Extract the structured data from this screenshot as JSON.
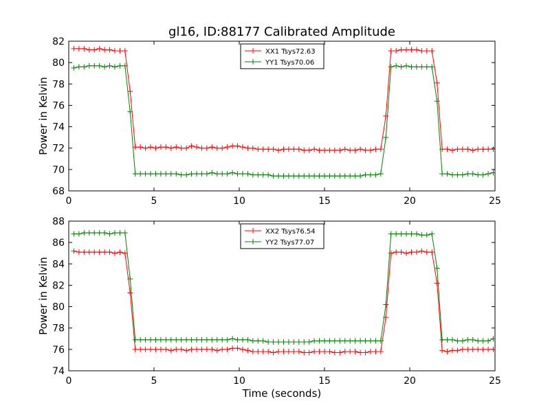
{
  "title": "gl16, ID:88177 Calibrated Amplitude",
  "colors": {
    "xx": "#ff0000",
    "yy": "#008000"
  },
  "chart_data": [
    {
      "type": "line",
      "ylabel": "Power in Kelvin",
      "xlabel": "",
      "xlim": [
        0,
        25
      ],
      "ylim": [
        68,
        82
      ],
      "xticks": [
        "0",
        "5",
        "10",
        "15",
        "20",
        "25"
      ],
      "yticks": [
        "68",
        "70",
        "72",
        "74",
        "76",
        "78",
        "80",
        "82"
      ],
      "legend_position": "top-center",
      "grid": false,
      "series": [
        {
          "name": "XX1 Tsys72.63",
          "color": "#ff0000",
          "x": [
            0.3,
            0.6,
            0.9,
            1.2,
            1.5,
            1.8,
            2.1,
            2.4,
            2.7,
            3.0,
            3.3,
            3.6,
            3.9,
            4.2,
            4.5,
            4.8,
            5.1,
            5.4,
            5.7,
            6.0,
            6.3,
            6.6,
            6.9,
            7.2,
            7.5,
            7.8,
            8.1,
            8.4,
            8.7,
            9.0,
            9.3,
            9.6,
            9.9,
            10.2,
            10.5,
            10.8,
            11.1,
            11.4,
            11.7,
            12.0,
            12.3,
            12.6,
            12.9,
            13.2,
            13.5,
            13.8,
            14.1,
            14.4,
            14.7,
            15.0,
            15.3,
            15.6,
            15.9,
            16.2,
            16.5,
            16.8,
            17.1,
            17.4,
            17.7,
            18.0,
            18.3,
            18.6,
            18.9,
            19.2,
            19.5,
            19.8,
            20.1,
            20.4,
            20.7,
            21.0,
            21.3,
            21.6,
            21.9,
            22.2,
            22.5,
            22.8,
            23.1,
            23.4,
            23.7,
            24.0,
            24.3,
            24.6,
            24.9
          ],
          "values": [
            81.3,
            81.3,
            81.3,
            81.2,
            81.2,
            81.3,
            81.2,
            81.2,
            81.1,
            81.1,
            81.1,
            77.3,
            72.1,
            72.1,
            72.0,
            72.1,
            72.0,
            72.1,
            72.1,
            72.0,
            72.1,
            72.0,
            72.0,
            72.2,
            72.1,
            72.0,
            72.0,
            72.1,
            72.0,
            72.0,
            72.1,
            72.2,
            72.2,
            72.1,
            72.0,
            72.0,
            71.9,
            71.9,
            71.9,
            71.9,
            71.8,
            71.9,
            71.9,
            71.9,
            71.9,
            71.8,
            71.8,
            71.9,
            71.8,
            71.8,
            71.8,
            71.8,
            71.8,
            71.9,
            71.8,
            71.8,
            71.9,
            71.8,
            71.8,
            71.9,
            71.9,
            75.0,
            81.1,
            81.1,
            81.2,
            81.2,
            81.2,
            81.2,
            81.1,
            81.1,
            81.1,
            78.1,
            71.9,
            71.9,
            71.8,
            71.9,
            71.9,
            71.9,
            71.8,
            71.9,
            71.9,
            71.9,
            71.9
          ]
        },
        {
          "name": "YY1 Tsys70.06",
          "color": "#008000",
          "x": [
            0.3,
            0.6,
            0.9,
            1.2,
            1.5,
            1.8,
            2.1,
            2.4,
            2.7,
            3.0,
            3.3,
            3.6,
            3.9,
            4.2,
            4.5,
            4.8,
            5.1,
            5.4,
            5.7,
            6.0,
            6.3,
            6.6,
            6.9,
            7.2,
            7.5,
            7.8,
            8.1,
            8.4,
            8.7,
            9.0,
            9.3,
            9.6,
            9.9,
            10.2,
            10.5,
            10.8,
            11.1,
            11.4,
            11.7,
            12.0,
            12.3,
            12.6,
            12.9,
            13.2,
            13.5,
            13.8,
            14.1,
            14.4,
            14.7,
            15.0,
            15.3,
            15.6,
            15.9,
            16.2,
            16.5,
            16.8,
            17.1,
            17.4,
            17.7,
            18.0,
            18.3,
            18.6,
            18.9,
            19.2,
            19.5,
            19.8,
            20.1,
            20.4,
            20.7,
            21.0,
            21.3,
            21.6,
            21.9,
            22.2,
            22.5,
            22.8,
            23.1,
            23.4,
            23.7,
            24.0,
            24.3,
            24.6,
            24.9
          ],
          "values": [
            79.5,
            79.6,
            79.6,
            79.7,
            79.7,
            79.7,
            79.6,
            79.7,
            79.6,
            79.7,
            79.7,
            75.4,
            69.6,
            69.6,
            69.6,
            69.6,
            69.6,
            69.6,
            69.6,
            69.6,
            69.6,
            69.5,
            69.5,
            69.6,
            69.6,
            69.6,
            69.6,
            69.7,
            69.6,
            69.6,
            69.6,
            69.7,
            69.6,
            69.6,
            69.6,
            69.5,
            69.5,
            69.5,
            69.5,
            69.4,
            69.4,
            69.4,
            69.4,
            69.4,
            69.4,
            69.4,
            69.4,
            69.4,
            69.4,
            69.4,
            69.4,
            69.4,
            69.4,
            69.4,
            69.4,
            69.4,
            69.4,
            69.5,
            69.5,
            69.5,
            69.6,
            73.0,
            79.6,
            79.7,
            79.6,
            79.7,
            79.6,
            79.6,
            79.6,
            79.6,
            79.6,
            76.4,
            69.6,
            69.6,
            69.5,
            69.5,
            69.5,
            69.6,
            69.6,
            69.5,
            69.5,
            69.6,
            69.7
          ]
        }
      ]
    },
    {
      "type": "line",
      "ylabel": "Power in Kelvin",
      "xlabel": "Time (seconds)",
      "xlim": [
        0,
        25
      ],
      "ylim": [
        74,
        88
      ],
      "xticks": [
        "0",
        "5",
        "10",
        "15",
        "20",
        "25"
      ],
      "yticks": [
        "74",
        "76",
        "78",
        "80",
        "82",
        "84",
        "86",
        "88"
      ],
      "legend_position": "top-center",
      "grid": false,
      "series": [
        {
          "name": "XX2 Tsys76.54",
          "color": "#ff0000",
          "x": [
            0.3,
            0.6,
            0.9,
            1.2,
            1.5,
            1.8,
            2.1,
            2.4,
            2.7,
            3.0,
            3.3,
            3.6,
            3.9,
            4.2,
            4.5,
            4.8,
            5.1,
            5.4,
            5.7,
            6.0,
            6.3,
            6.6,
            6.9,
            7.2,
            7.5,
            7.8,
            8.1,
            8.4,
            8.7,
            9.0,
            9.3,
            9.6,
            9.9,
            10.2,
            10.5,
            10.8,
            11.1,
            11.4,
            11.7,
            12.0,
            12.3,
            12.6,
            12.9,
            13.2,
            13.5,
            13.8,
            14.1,
            14.4,
            14.7,
            15.0,
            15.3,
            15.6,
            15.9,
            16.2,
            16.5,
            16.8,
            17.1,
            17.4,
            17.7,
            18.0,
            18.3,
            18.6,
            18.9,
            19.2,
            19.5,
            19.8,
            20.1,
            20.4,
            20.7,
            21.0,
            21.3,
            21.6,
            21.9,
            22.2,
            22.5,
            22.8,
            23.1,
            23.4,
            23.7,
            24.0,
            24.3,
            24.6,
            24.9
          ],
          "values": [
            85.2,
            85.1,
            85.1,
            85.1,
            85.1,
            85.1,
            85.1,
            85.1,
            85.0,
            85.1,
            85.0,
            81.3,
            76.0,
            76.0,
            76.0,
            76.0,
            76.0,
            76.0,
            76.0,
            75.9,
            76.0,
            76.0,
            75.9,
            76.0,
            76.0,
            76.0,
            76.0,
            76.0,
            75.9,
            76.0,
            76.0,
            76.1,
            76.1,
            76.0,
            75.9,
            75.8,
            75.8,
            75.8,
            75.8,
            75.7,
            75.8,
            75.8,
            75.8,
            75.8,
            75.8,
            75.7,
            75.7,
            75.8,
            75.8,
            75.8,
            75.8,
            75.7,
            75.7,
            75.8,
            75.8,
            75.8,
            75.7,
            75.7,
            75.8,
            75.8,
            75.8,
            79.0,
            85.0,
            85.1,
            85.1,
            85.0,
            85.1,
            85.1,
            85.2,
            85.1,
            85.1,
            82.2,
            75.9,
            75.8,
            75.9,
            75.9,
            76.0,
            76.0,
            76.0,
            76.0,
            76.0,
            76.0,
            76.0
          ]
        },
        {
          "name": "YY2 Tsys77.07",
          "color": "#008000",
          "x": [
            0.3,
            0.6,
            0.9,
            1.2,
            1.5,
            1.8,
            2.1,
            2.4,
            2.7,
            3.0,
            3.3,
            3.6,
            3.9,
            4.2,
            4.5,
            4.8,
            5.1,
            5.4,
            5.7,
            6.0,
            6.3,
            6.6,
            6.9,
            7.2,
            7.5,
            7.8,
            8.1,
            8.4,
            8.7,
            9.0,
            9.3,
            9.6,
            9.9,
            10.2,
            10.5,
            10.8,
            11.1,
            11.4,
            11.7,
            12.0,
            12.3,
            12.6,
            12.9,
            13.2,
            13.5,
            13.8,
            14.1,
            14.4,
            14.7,
            15.0,
            15.3,
            15.6,
            15.9,
            16.2,
            16.5,
            16.8,
            17.1,
            17.4,
            17.7,
            18.0,
            18.3,
            18.6,
            18.9,
            19.2,
            19.5,
            19.8,
            20.1,
            20.4,
            20.7,
            21.0,
            21.3,
            21.6,
            21.9,
            22.2,
            22.5,
            22.8,
            23.1,
            23.4,
            23.7,
            24.0,
            24.3,
            24.6,
            24.9
          ],
          "values": [
            86.8,
            86.8,
            86.9,
            86.9,
            86.9,
            86.9,
            86.9,
            86.8,
            86.9,
            86.9,
            86.9,
            82.6,
            76.9,
            76.9,
            76.9,
            76.9,
            76.9,
            76.9,
            76.9,
            76.9,
            76.9,
            76.9,
            76.9,
            76.9,
            76.9,
            76.9,
            76.9,
            76.9,
            76.9,
            76.9,
            76.9,
            77.0,
            76.9,
            76.9,
            76.9,
            76.8,
            76.8,
            76.8,
            76.7,
            76.7,
            76.7,
            76.7,
            76.7,
            76.7,
            76.7,
            76.7,
            76.7,
            76.8,
            76.8,
            76.8,
            76.8,
            76.8,
            76.8,
            76.8,
            76.8,
            76.8,
            76.8,
            76.8,
            76.8,
            76.8,
            76.8,
            80.2,
            86.8,
            86.8,
            86.8,
            86.8,
            86.8,
            86.8,
            86.7,
            86.7,
            86.8,
            83.6,
            76.9,
            76.9,
            76.9,
            76.8,
            76.8,
            76.9,
            76.9,
            76.8,
            76.8,
            76.8,
            77.0
          ]
        }
      ]
    }
  ]
}
